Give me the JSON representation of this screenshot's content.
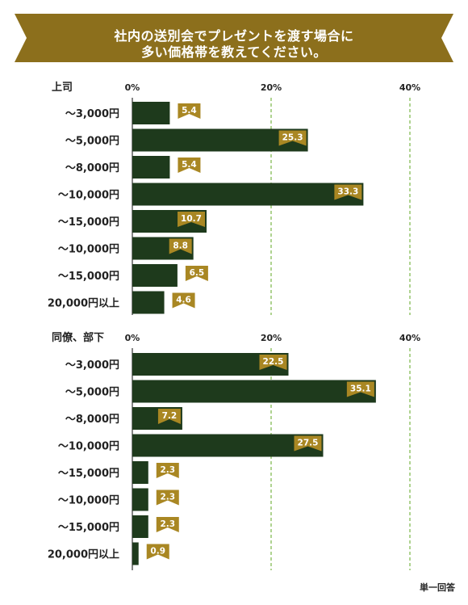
{
  "title": {
    "line1": "社内の送別会でプレゼントを渡す場合に",
    "line2": "多い価格帯を教えてください。"
  },
  "note": "単一回答",
  "colors": {
    "banner": "#8c6f1c",
    "bar": "#1e3a1c",
    "label_bg": "#a98723",
    "grid": "#7ab648"
  },
  "chart_data": [
    {
      "type": "bar",
      "orientation": "horizontal",
      "title": "上司",
      "categories": [
        "～3,000円",
        "～5,000円",
        "～8,000円",
        "～10,000円",
        "～15,000円",
        "～10,000円",
        "～15,000円",
        "20,000円以上"
      ],
      "values": [
        5.4,
        25.3,
        5.4,
        33.3,
        10.7,
        8.8,
        6.5,
        4.6
      ],
      "xticks": [
        "0%",
        "20%",
        "40%"
      ],
      "xlim": [
        0,
        46
      ],
      "grid": true
    },
    {
      "type": "bar",
      "orientation": "horizontal",
      "title": "同僚、部下",
      "categories": [
        "～3,000円",
        "～5,000円",
        "～8,000円",
        "～10,000円",
        "～15,000円",
        "～10,000円",
        "～15,000円",
        "20,000円以上"
      ],
      "values": [
        22.5,
        35.1,
        7.2,
        27.5,
        2.3,
        2.3,
        2.3,
        0.9
      ],
      "xticks": [
        "0%",
        "20%",
        "40%"
      ],
      "xlim": [
        0,
        46
      ],
      "grid": true
    }
  ]
}
